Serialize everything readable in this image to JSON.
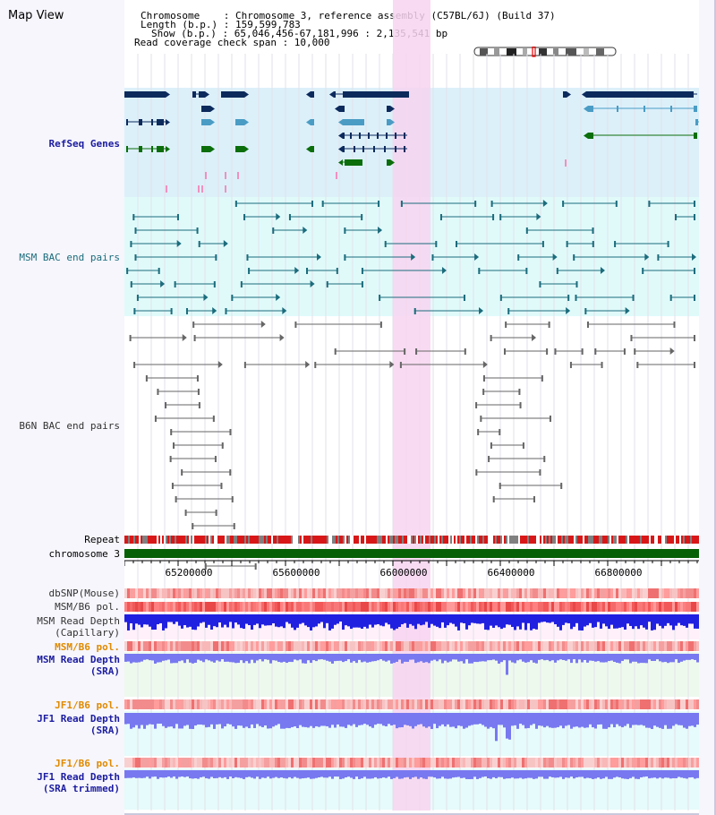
{
  "view": {
    "title": "Map View"
  },
  "header": {
    "chromosome_line": "Chromosome    : Chromosome 3, reference assembly (C57BL/6J) (Build 37)",
    "length_line": "Length (b.p.) : 159,599,783",
    "show_line": "Show (b.p.) : 65,046,456-67,181,996 : 2,135,541 bp",
    "coverage_line": "Read coverage check span : 10,000"
  },
  "tracks": {
    "refseq": "RefSeq Genes",
    "msm_bac": "MSM BAC end pairs",
    "b6n_bac": "B6N BAC end pairs",
    "repeat": "Repeat",
    "chromosome": "chromosome 3",
    "dbsnp": "dbSNP(Mouse)",
    "msm_b6_pol": "MSM/B6 pol.",
    "msm_read_depth_cap": [
      "MSM Read Depth",
      "(Capillary)"
    ],
    "msm_b6_pol_2": "MSM/B6 pol.",
    "msm_read_depth_sra": [
      "MSM Read Depth",
      "(SRA)"
    ],
    "jf1_b6_pol": "JF1/B6 pol.",
    "jf1_read_depth_sra": [
      "JF1 Read Depth",
      "(SRA)"
    ],
    "jf1_b6_pol_2": "JF1/B6 pol.",
    "jf1_read_depth_trim": [
      "JF1 Read Depth",
      "(SRA trimmed)"
    ]
  },
  "axis": {
    "ticks": [
      "65200000",
      "65600000",
      "66000000",
      "66400000",
      "66800000"
    ]
  },
  "colors": {
    "highlight": "#f7d4f0",
    "refseq_bg": "#dcf0fa",
    "msm_bg": "#e0fafa",
    "gene_dark": "#0c2a5c",
    "gene_light": "#4a9cc4",
    "gene_green": "#0b6e0b",
    "repeat_red": "#d81818",
    "chrom_green": "#066006",
    "depth_blue": "#2020e0",
    "depth_light": "#7878f0"
  }
}
